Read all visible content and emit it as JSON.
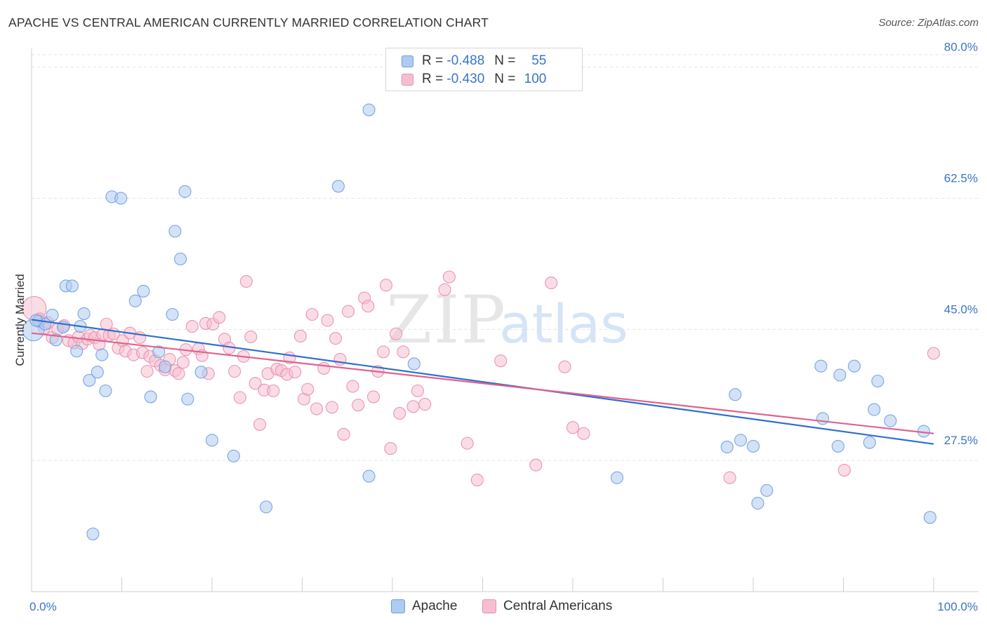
{
  "title": "APACHE VS CENTRAL AMERICAN CURRENTLY MARRIED CORRELATION CHART",
  "source": "Source: ZipAtlas.com",
  "watermark": {
    "zip": "ZIP",
    "atlas": "atlas"
  },
  "legend_top": [
    {
      "r_label": "R =",
      "r_value": "-0.488",
      "n_label": "N =",
      "n_value": "55"
    },
    {
      "r_label": "R =",
      "r_value": "-0.430",
      "n_label": "N =",
      "n_value": "100"
    }
  ],
  "colors": {
    "apache_fill": "#aecbf1",
    "apache_stroke": "#6a9ee0",
    "apache_line": "#2e6fd0",
    "central_fill": "#f6bfd0",
    "central_stroke": "#e98cab",
    "central_line": "#e0628f",
    "tick_label": "#3a74c9",
    "grid": "#e3e3e3"
  },
  "chart_data": {
    "type": "scatter",
    "title": "APACHE VS CENTRAL AMERICAN CURRENTLY MARRIED CORRELATION CHART",
    "xlabel": "",
    "ylabel": "Currently Married",
    "xlim": [
      0,
      100
    ],
    "ylim": [
      10,
      82.5
    ],
    "x_tick_labels": [
      {
        "value": 0,
        "label": "0.0%"
      },
      {
        "value": 100,
        "label": "100.0%"
      }
    ],
    "x_minor_ticks": [
      10,
      20,
      30,
      40,
      50,
      60,
      70,
      80,
      90,
      100
    ],
    "y_ticks": [
      {
        "value": 80,
        "label": "80.0%"
      },
      {
        "value": 62.5,
        "label": "62.5%"
      },
      {
        "value": 45,
        "label": "45.0%"
      },
      {
        "value": 27.5,
        "label": "27.5%"
      }
    ],
    "grid": true,
    "legend_position": "top-center",
    "series": [
      {
        "name": "Apache",
        "trend": {
          "x": [
            0,
            100
          ],
          "y": [
            46.3,
            29.7
          ]
        },
        "points": [
          {
            "x": 0.2,
            "y": 44.9,
            "s": 1.8
          },
          {
            "x": 0.8,
            "y": 46.1,
            "s": 1
          },
          {
            "x": 1.5,
            "y": 45.7,
            "s": 1
          },
          {
            "x": 2.3,
            "y": 46.9,
            "s": 1
          },
          {
            "x": 2.7,
            "y": 43.6,
            "s": 1
          },
          {
            "x": 3.5,
            "y": 45.3,
            "s": 1
          },
          {
            "x": 3.8,
            "y": 50.8,
            "s": 1
          },
          {
            "x": 4.5,
            "y": 50.8,
            "s": 1
          },
          {
            "x": 5.0,
            "y": 42.1,
            "s": 1
          },
          {
            "x": 5.4,
            "y": 45.4,
            "s": 1
          },
          {
            "x": 5.8,
            "y": 47.1,
            "s": 1
          },
          {
            "x": 6.4,
            "y": 38.2,
            "s": 1
          },
          {
            "x": 7.3,
            "y": 39.3,
            "s": 1
          },
          {
            "x": 7.8,
            "y": 41.6,
            "s": 1
          },
          {
            "x": 8.2,
            "y": 36.8,
            "s": 1
          },
          {
            "x": 6.8,
            "y": 17.7,
            "s": 1
          },
          {
            "x": 8.9,
            "y": 62.7,
            "s": 1
          },
          {
            "x": 9.9,
            "y": 62.5,
            "s": 1
          },
          {
            "x": 11.5,
            "y": 48.8,
            "s": 1
          },
          {
            "x": 12.4,
            "y": 50.1,
            "s": 1
          },
          {
            "x": 13.2,
            "y": 36.0,
            "s": 1
          },
          {
            "x": 14.1,
            "y": 42.0,
            "s": 1
          },
          {
            "x": 14.8,
            "y": 40.0,
            "s": 1
          },
          {
            "x": 15.6,
            "y": 47.0,
            "s": 1
          },
          {
            "x": 15.9,
            "y": 58.1,
            "s": 1
          },
          {
            "x": 16.5,
            "y": 54.4,
            "s": 1
          },
          {
            "x": 17.0,
            "y": 63.4,
            "s": 1
          },
          {
            "x": 17.3,
            "y": 35.7,
            "s": 1
          },
          {
            "x": 18.8,
            "y": 39.3,
            "s": 1
          },
          {
            "x": 20.0,
            "y": 30.2,
            "s": 1
          },
          {
            "x": 22.4,
            "y": 28.1,
            "s": 1
          },
          {
            "x": 26.0,
            "y": 21.3,
            "s": 1
          },
          {
            "x": 34.0,
            "y": 64.1,
            "s": 1
          },
          {
            "x": 37.4,
            "y": 74.3,
            "s": 1
          },
          {
            "x": 37.4,
            "y": 25.4,
            "s": 1
          },
          {
            "x": 42.4,
            "y": 40.4,
            "s": 1
          },
          {
            "x": 64.9,
            "y": 25.2,
            "s": 1
          },
          {
            "x": 78.0,
            "y": 36.3,
            "s": 1
          },
          {
            "x": 77.1,
            "y": 29.3,
            "s": 1
          },
          {
            "x": 78.6,
            "y": 30.2,
            "s": 1
          },
          {
            "x": 80.0,
            "y": 29.4,
            "s": 1
          },
          {
            "x": 81.5,
            "y": 23.5,
            "s": 1
          },
          {
            "x": 80.5,
            "y": 21.8,
            "s": 1
          },
          {
            "x": 87.5,
            "y": 40.1,
            "s": 1
          },
          {
            "x": 87.7,
            "y": 33.1,
            "s": 1
          },
          {
            "x": 89.4,
            "y": 29.4,
            "s": 1
          },
          {
            "x": 89.6,
            "y": 38.9,
            "s": 1
          },
          {
            "x": 91.2,
            "y": 40.1,
            "s": 1
          },
          {
            "x": 92.9,
            "y": 29.9,
            "s": 1
          },
          {
            "x": 93.4,
            "y": 34.3,
            "s": 1
          },
          {
            "x": 93.8,
            "y": 38.1,
            "s": 1
          },
          {
            "x": 95.2,
            "y": 32.8,
            "s": 1
          },
          {
            "x": 98.9,
            "y": 31.4,
            "s": 1
          },
          {
            "x": 99.6,
            "y": 19.9,
            "s": 1
          },
          {
            "x": 0.5,
            "y": 46.2,
            "s": 1
          }
        ]
      },
      {
        "name": "Central Americans",
        "trend": {
          "x": [
            0,
            100
          ],
          "y": [
            44.5,
            31.1
          ]
        },
        "points": [
          {
            "x": 0.3,
            "y": 47.8,
            "s": 2
          },
          {
            "x": 0.9,
            "y": 46.4,
            "s": 1
          },
          {
            "x": 1.4,
            "y": 45.2,
            "s": 1
          },
          {
            "x": 1.8,
            "y": 45.9,
            "s": 1
          },
          {
            "x": 2.3,
            "y": 43.9,
            "s": 1
          },
          {
            "x": 2.9,
            "y": 45.0,
            "s": 1
          },
          {
            "x": 3.6,
            "y": 45.5,
            "s": 1
          },
          {
            "x": 4.1,
            "y": 43.5,
            "s": 1
          },
          {
            "x": 4.7,
            "y": 43.2,
            "s": 1
          },
          {
            "x": 5.2,
            "y": 44.0,
            "s": 1
          },
          {
            "x": 5.6,
            "y": 43.1,
            "s": 1
          },
          {
            "x": 6.2,
            "y": 43.7,
            "s": 1
          },
          {
            "x": 6.5,
            "y": 44.2,
            "s": 1
          },
          {
            "x": 7.0,
            "y": 43.9,
            "s": 1
          },
          {
            "x": 7.5,
            "y": 43.0,
            "s": 1
          },
          {
            "x": 7.9,
            "y": 44.3,
            "s": 1
          },
          {
            "x": 8.3,
            "y": 45.7,
            "s": 1
          },
          {
            "x": 8.6,
            "y": 44.2,
            "s": 1
          },
          {
            "x": 9.1,
            "y": 44.4,
            "s": 1
          },
          {
            "x": 9.6,
            "y": 42.5,
            "s": 1
          },
          {
            "x": 10.1,
            "y": 43.5,
            "s": 1
          },
          {
            "x": 10.4,
            "y": 42.1,
            "s": 1
          },
          {
            "x": 10.9,
            "y": 44.5,
            "s": 1
          },
          {
            "x": 11.3,
            "y": 41.6,
            "s": 1
          },
          {
            "x": 12.0,
            "y": 43.9,
            "s": 1
          },
          {
            "x": 12.3,
            "y": 41.9,
            "s": 1
          },
          {
            "x": 12.8,
            "y": 39.4,
            "s": 1
          },
          {
            "x": 13.1,
            "y": 41.4,
            "s": 1
          },
          {
            "x": 13.7,
            "y": 40.8,
            "s": 1
          },
          {
            "x": 14.3,
            "y": 40.2,
            "s": 1
          },
          {
            "x": 14.8,
            "y": 39.6,
            "s": 1
          },
          {
            "x": 15.3,
            "y": 41.0,
            "s": 1
          },
          {
            "x": 15.9,
            "y": 39.5,
            "s": 1
          },
          {
            "x": 16.3,
            "y": 39.1,
            "s": 1
          },
          {
            "x": 16.8,
            "y": 40.6,
            "s": 1
          },
          {
            "x": 17.1,
            "y": 42.3,
            "s": 1
          },
          {
            "x": 17.8,
            "y": 45.4,
            "s": 1
          },
          {
            "x": 18.5,
            "y": 42.4,
            "s": 1
          },
          {
            "x": 18.9,
            "y": 41.5,
            "s": 1
          },
          {
            "x": 19.3,
            "y": 45.8,
            "s": 1
          },
          {
            "x": 19.6,
            "y": 39.1,
            "s": 1
          },
          {
            "x": 20.1,
            "y": 45.7,
            "s": 1
          },
          {
            "x": 20.8,
            "y": 46.6,
            "s": 1
          },
          {
            "x": 21.4,
            "y": 43.7,
            "s": 1
          },
          {
            "x": 21.9,
            "y": 42.5,
            "s": 1
          },
          {
            "x": 22.5,
            "y": 39.4,
            "s": 1
          },
          {
            "x": 23.1,
            "y": 35.9,
            "s": 1
          },
          {
            "x": 23.5,
            "y": 41.4,
            "s": 1
          },
          {
            "x": 23.8,
            "y": 51.4,
            "s": 1
          },
          {
            "x": 24.3,
            "y": 44.0,
            "s": 1
          },
          {
            "x": 24.8,
            "y": 37.8,
            "s": 1
          },
          {
            "x": 25.3,
            "y": 32.3,
            "s": 1
          },
          {
            "x": 25.8,
            "y": 36.9,
            "s": 1
          },
          {
            "x": 26.2,
            "y": 39.1,
            "s": 1
          },
          {
            "x": 26.8,
            "y": 36.8,
            "s": 1
          },
          {
            "x": 27.2,
            "y": 39.7,
            "s": 1
          },
          {
            "x": 27.7,
            "y": 39.5,
            "s": 1
          },
          {
            "x": 28.3,
            "y": 39.0,
            "s": 1
          },
          {
            "x": 28.6,
            "y": 41.2,
            "s": 1
          },
          {
            "x": 29.2,
            "y": 39.3,
            "s": 1
          },
          {
            "x": 29.8,
            "y": 44.1,
            "s": 1
          },
          {
            "x": 30.2,
            "y": 35.7,
            "s": 1
          },
          {
            "x": 30.6,
            "y": 37.0,
            "s": 1
          },
          {
            "x": 31.1,
            "y": 47.0,
            "s": 1
          },
          {
            "x": 31.6,
            "y": 34.4,
            "s": 1
          },
          {
            "x": 32.4,
            "y": 39.8,
            "s": 1
          },
          {
            "x": 32.8,
            "y": 46.2,
            "s": 1
          },
          {
            "x": 33.3,
            "y": 34.6,
            "s": 1
          },
          {
            "x": 33.7,
            "y": 43.8,
            "s": 1
          },
          {
            "x": 34.2,
            "y": 41.0,
            "s": 1
          },
          {
            "x": 34.6,
            "y": 31.0,
            "s": 1
          },
          {
            "x": 35.1,
            "y": 47.4,
            "s": 1
          },
          {
            "x": 35.6,
            "y": 37.4,
            "s": 1
          },
          {
            "x": 36.2,
            "y": 34.9,
            "s": 1
          },
          {
            "x": 36.9,
            "y": 49.2,
            "s": 1
          },
          {
            "x": 37.3,
            "y": 48.1,
            "s": 1
          },
          {
            "x": 37.9,
            "y": 36.0,
            "s": 1
          },
          {
            "x": 38.4,
            "y": 39.4,
            "s": 1
          },
          {
            "x": 39.0,
            "y": 42.0,
            "s": 1
          },
          {
            "x": 39.3,
            "y": 50.9,
            "s": 1
          },
          {
            "x": 39.8,
            "y": 29.1,
            "s": 1
          },
          {
            "x": 40.4,
            "y": 44.4,
            "s": 1
          },
          {
            "x": 40.8,
            "y": 33.8,
            "s": 1
          },
          {
            "x": 41.2,
            "y": 42.0,
            "s": 1
          },
          {
            "x": 42.3,
            "y": 34.7,
            "s": 1
          },
          {
            "x": 42.8,
            "y": 36.8,
            "s": 1
          },
          {
            "x": 43.6,
            "y": 35.0,
            "s": 1
          },
          {
            "x": 45.8,
            "y": 50.3,
            "s": 1
          },
          {
            "x": 46.3,
            "y": 52.0,
            "s": 1
          },
          {
            "x": 48.3,
            "y": 29.8,
            "s": 1
          },
          {
            "x": 49.4,
            "y": 24.9,
            "s": 1
          },
          {
            "x": 52.0,
            "y": 40.8,
            "s": 1
          },
          {
            "x": 55.9,
            "y": 26.9,
            "s": 1
          },
          {
            "x": 57.6,
            "y": 51.2,
            "s": 1
          },
          {
            "x": 59.1,
            "y": 40.0,
            "s": 1
          },
          {
            "x": 60.0,
            "y": 31.9,
            "s": 1
          },
          {
            "x": 61.2,
            "y": 31.1,
            "s": 1
          },
          {
            "x": 77.4,
            "y": 25.2,
            "s": 1
          },
          {
            "x": 90.1,
            "y": 26.2,
            "s": 1
          },
          {
            "x": 100.0,
            "y": 41.8,
            "s": 1
          }
        ]
      }
    ]
  },
  "legend_bottom": [
    "Apache",
    "Central Americans"
  ]
}
